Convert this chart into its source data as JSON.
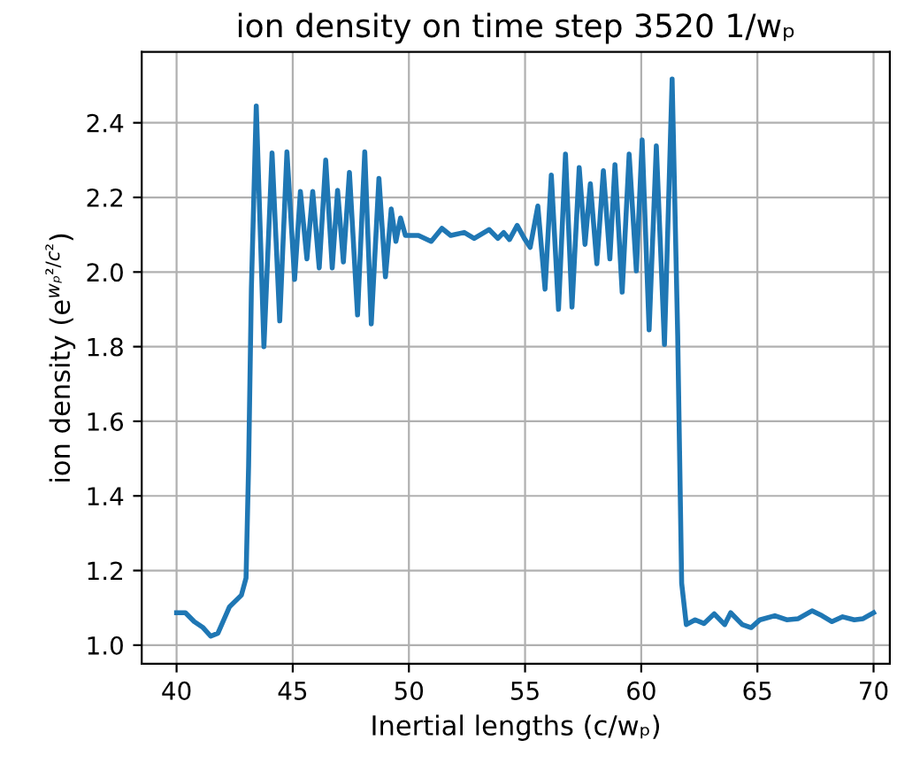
{
  "chart_data": {
    "type": "line",
    "title": "ion density on time step 3520 1/wₚ",
    "xlabel": "Inertial lengths (c/wₚ)",
    "ylabel": "ion density (e$^{wₚ²/c²}$)",
    "xlim": [
      38.5,
      70.7
    ],
    "xticks": [
      40,
      45,
      50,
      55,
      60,
      65,
      70
    ],
    "ylim": [
      0.95,
      2.59
    ],
    "yticks": [
      {
        "value": 1,
        "label": "1.0"
      },
      1.2,
      1.4,
      1.6,
      1.8,
      {
        "value": 2,
        "label": "2.0"
      },
      2.2,
      2.4
    ],
    "grid": true,
    "marker": "none",
    "line_style": "solid",
    "series": [
      {
        "color": "#1f77b4",
        "x": [
          40,
          40.38,
          40.76,
          41.14,
          41.47,
          41.78,
          42.28,
          42.79,
          42.99,
          43.1,
          43.22,
          43.43,
          43.76,
          44.11,
          44.44,
          44.75,
          45.08,
          45.33,
          45.61,
          45.86,
          46.14,
          46.42,
          46.7,
          46.93,
          47.18,
          47.44,
          47.79,
          48.1,
          48.38,
          48.71,
          48.99,
          49.24,
          49.44,
          49.64,
          49.85,
          50.41,
          50.96,
          51.42,
          51.8,
          52.38,
          52.81,
          53.45,
          53.83,
          54.08,
          54.33,
          54.66,
          54.97,
          55.22,
          55.55,
          55.86,
          56.13,
          56.44,
          56.74,
          57.02,
          57.33,
          57.58,
          57.81,
          58.09,
          58.37,
          58.65,
          58.87,
          59.18,
          59.48,
          59.79,
          60.04,
          60.34,
          60.65,
          61.0,
          61.33,
          61.57,
          61.74,
          61.94,
          62.32,
          62.7,
          63.14,
          63.59,
          63.85,
          64.35,
          64.73,
          65.11,
          65.75,
          66.26,
          66.76,
          67.35,
          67.78,
          68.21,
          68.67,
          69.17,
          69.55,
          70
        ],
        "values": [
          1.087,
          1.087,
          1.063,
          1.047,
          1.024,
          1.032,
          1.103,
          1.134,
          1.18,
          1.48,
          1.956,
          2.445,
          1.8,
          2.319,
          1.869,
          2.322,
          1.98,
          2.216,
          2.035,
          2.216,
          2.011,
          2.3,
          2.011,
          2.219,
          2.027,
          2.267,
          1.885,
          2.322,
          1.861,
          2.251,
          1.987,
          2.169,
          2.082,
          2.145,
          2.098,
          2.098,
          2.082,
          2.117,
          2.098,
          2.106,
          2.09,
          2.114,
          2.09,
          2.106,
          2.087,
          2.125,
          2.09,
          2.066,
          2.177,
          1.954,
          2.26,
          1.9,
          2.316,
          1.906,
          2.28,
          2.074,
          2.237,
          2.022,
          2.272,
          2.035,
          2.288,
          1.946,
          2.316,
          2.003,
          2.354,
          1.845,
          2.338,
          1.806,
          2.517,
          1.83,
          1.166,
          1.055,
          1.068,
          1.058,
          1.084,
          1.055,
          1.087,
          1.055,
          1.047,
          1.068,
          1.079,
          1.068,
          1.071,
          1.092,
          1.079,
          1.063,
          1.076,
          1.068,
          1.071,
          1.087
        ]
      }
    ]
  }
}
